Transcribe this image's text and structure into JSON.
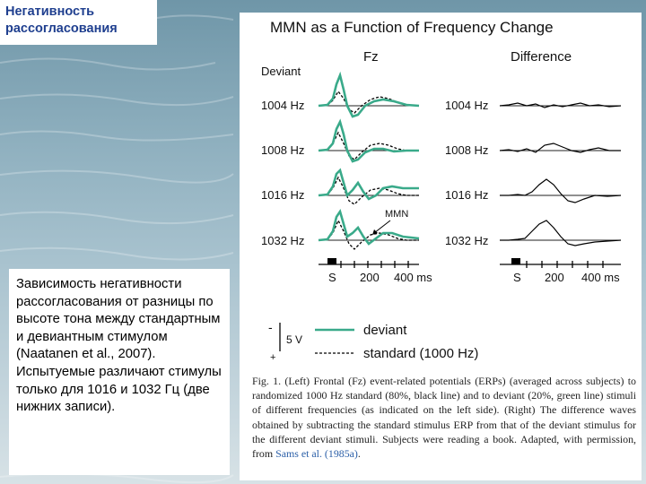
{
  "slide": {
    "title": "Негативность рассогласования",
    "description": "Зависимость негативности рассогласования от разницы по высоте тона между стандартным и девиантным стимулом (Naatanen et al., 2007). Испытуемые различают стимулы только для 1016 и 1032 Гц (две нижних записи)."
  },
  "figure": {
    "title": "MMN as a Function of Frequency Change",
    "left_panel_label": "Fz",
    "right_panel_label": "Difference",
    "deviant_label": "Deviant",
    "rows": [
      {
        "label_left": "1004 Hz",
        "label_right": "1004 Hz"
      },
      {
        "label_left": "1008 Hz",
        "label_right": "1008 Hz"
      },
      {
        "label_left": "1016 Hz",
        "label_right": "1016 Hz"
      },
      {
        "label_left": "1032 Hz",
        "label_right": "1032 Hz"
      }
    ],
    "mmn_annotation": "MMN",
    "time_axis": {
      "start": "S",
      "mid": "200",
      "end": "400 ms"
    },
    "legend": {
      "scale_label": "5 V",
      "minus": "-",
      "plus": "+",
      "deviant": "deviant",
      "standard": "standard (1000 Hz)"
    },
    "colors": {
      "deviant": "#3aaa8a",
      "standard": "#000000"
    },
    "caption_before_link": "Fig. 1. (Left) Frontal (Fz) event-related potentials (ERPs) (averaged across subjects) to randomized 1000 Hz standard (80%, black line) and to deviant (20%, green line) stimuli of different frequencies (as indicated on the left side). (Right) The difference waves obtained by subtracting the standard stimulus ERP from that of the deviant stimulus for the different deviant stimuli. Subjects were reading a book. Adapted, with permission, from ",
    "caption_link": "Sams et al. (1985a)",
    "caption_after_link": "."
  }
}
